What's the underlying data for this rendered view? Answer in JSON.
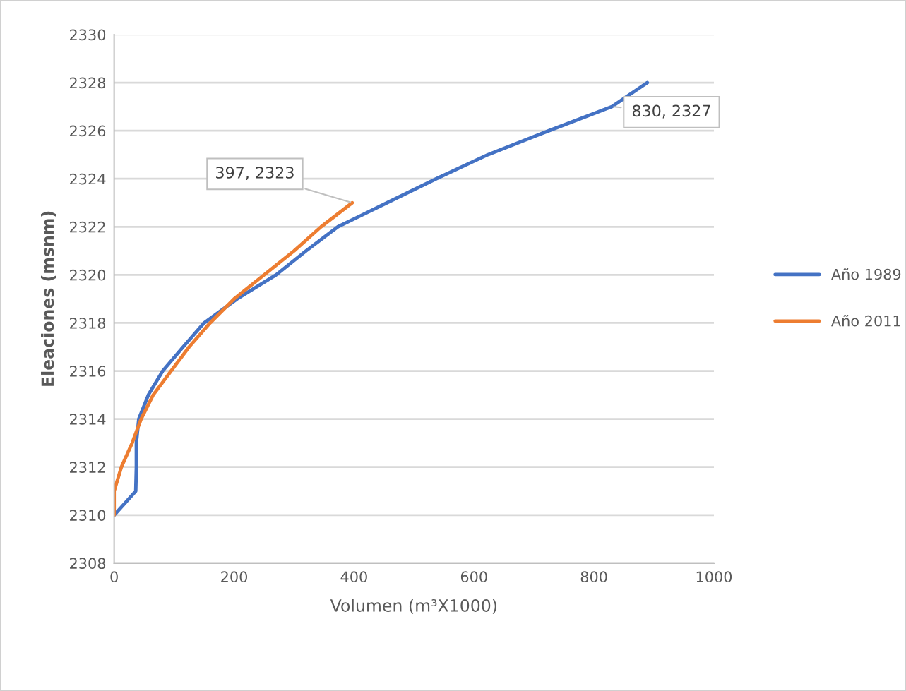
{
  "chart_data": {
    "type": "line",
    "xlabel": "Volumen (m³X1000)",
    "ylabel": "Eleaciones (msnm)",
    "xlim": [
      0,
      1000
    ],
    "xticks": [
      0,
      200,
      400,
      600,
      800,
      1000
    ],
    "ylim": [
      2308,
      2330
    ],
    "yticks": [
      2308,
      2310,
      2312,
      2314,
      2316,
      2318,
      2320,
      2322,
      2324,
      2326,
      2328,
      2330
    ],
    "grid": "y",
    "legend": "right",
    "marker": "none",
    "line_style": "solid",
    "series": [
      {
        "name": "Año 1989",
        "color": "#4472c4",
        "x": [
          0,
          36,
          37,
          37,
          41,
          57,
          81,
          115,
          150,
          205,
          270,
          320,
          373,
          455,
          537,
          623,
          725,
          830,
          889
        ],
        "values": [
          2310,
          2311,
          2312,
          2313,
          2314,
          2315,
          2316,
          2317,
          2318,
          2319,
          2320,
          2321,
          2322,
          2323,
          2324,
          2325,
          2326,
          2327,
          2328
        ]
      },
      {
        "name": "Año 2011",
        "color": "#ed7d31",
        "x": [
          0,
          0,
          12,
          30,
          45,
          65,
          95,
          125,
          160,
          200,
          250,
          300,
          345,
          397
        ],
        "values": [
          2310,
          2311,
          2312,
          2313,
          2314,
          2315,
          2316,
          2317,
          2318,
          2319,
          2320,
          2321,
          2322,
          2323
        ]
      }
    ],
    "annotations": [
      {
        "text": "830, 2327",
        "x": 830,
        "y": 2327
      },
      {
        "text": "397, 2323",
        "x": 397,
        "y": 2323
      }
    ]
  }
}
